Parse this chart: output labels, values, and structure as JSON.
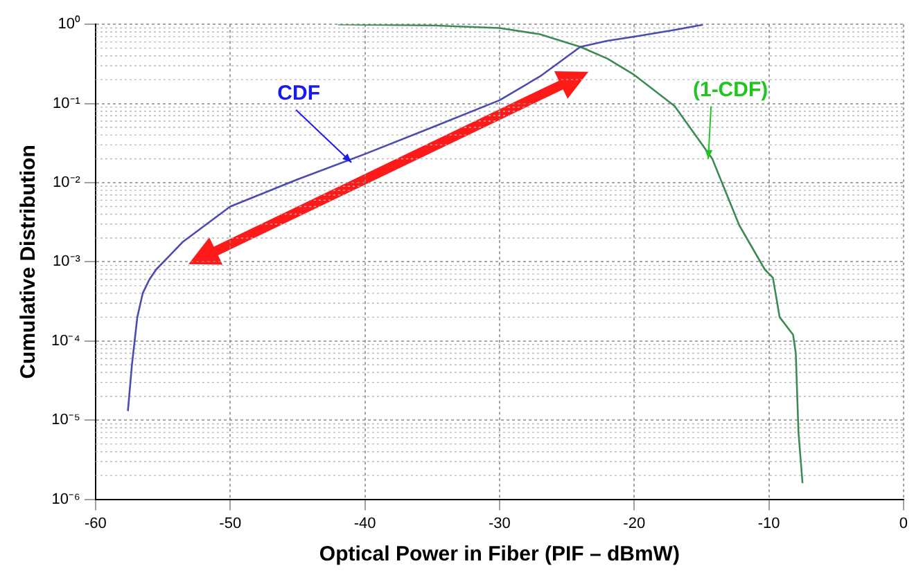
{
  "chart_data": {
    "type": "line",
    "xlabel": "Optical Power in Fiber (PIF – dBmW)",
    "ylabel": "Cumulative Distribution",
    "xlim": [
      -60,
      0
    ],
    "xticks": [
      -60,
      -50,
      -40,
      -30,
      -20,
      -10,
      0
    ],
    "ylim": [
      1e-06,
      1
    ],
    "yticks": [
      {
        "value": 1e-06,
        "label": "10⁻⁶"
      },
      {
        "value": 1e-05,
        "label": "10⁻⁵"
      },
      {
        "value": 0.0001,
        "label": "10⁻⁴"
      },
      {
        "value": 0.001,
        "label": "10⁻³"
      },
      {
        "value": 0.01,
        "label": "10⁻²"
      },
      {
        "value": 0.1,
        "label": "10⁻¹"
      },
      {
        "value": 1,
        "label": "10⁰"
      }
    ],
    "log": "y",
    "grid": true,
    "legend": false,
    "marker": "none",
    "line_style": "solid",
    "series": [
      {
        "color": "#4b4bb0",
        "x": [
          -57.6,
          -57.3,
          -56.9,
          -56.5,
          -56,
          -55.5,
          -54.5,
          -53.5,
          -50,
          -45,
          -40,
          -35,
          -30,
          -27,
          -24,
          -22,
          -20,
          -17,
          -14.9
        ],
        "values": [
          1.3e-05,
          5e-05,
          0.0002,
          0.0004,
          0.0006,
          0.0008,
          0.0012,
          0.0018,
          0.005,
          0.011,
          0.023,
          0.05,
          0.11,
          0.22,
          0.52,
          0.62,
          0.7,
          0.85,
          0.99
        ]
      },
      {
        "color": "#3d8a55",
        "x": [
          -42,
          -35,
          -30,
          -27,
          -24,
          -22,
          -20,
          -17,
          -14.2,
          -12.2,
          -10.3,
          -9.7,
          -9.2,
          -8.2,
          -8,
          -7.8,
          -7.5
        ],
        "values": [
          1,
          0.97,
          0.9,
          0.75,
          0.52,
          0.37,
          0.23,
          0.093,
          0.02,
          0.0029,
          0.0008,
          0.00063,
          0.0002,
          0.00012,
          7e-05,
          7e-06,
          1.6e-06
        ]
      }
    ],
    "annotations": [
      {
        "text": "CDF",
        "x": -41,
        "y": 0.018
      },
      {
        "text": "(1-CDF)",
        "x": -14.5,
        "y": 0.02
      }
    ]
  }
}
